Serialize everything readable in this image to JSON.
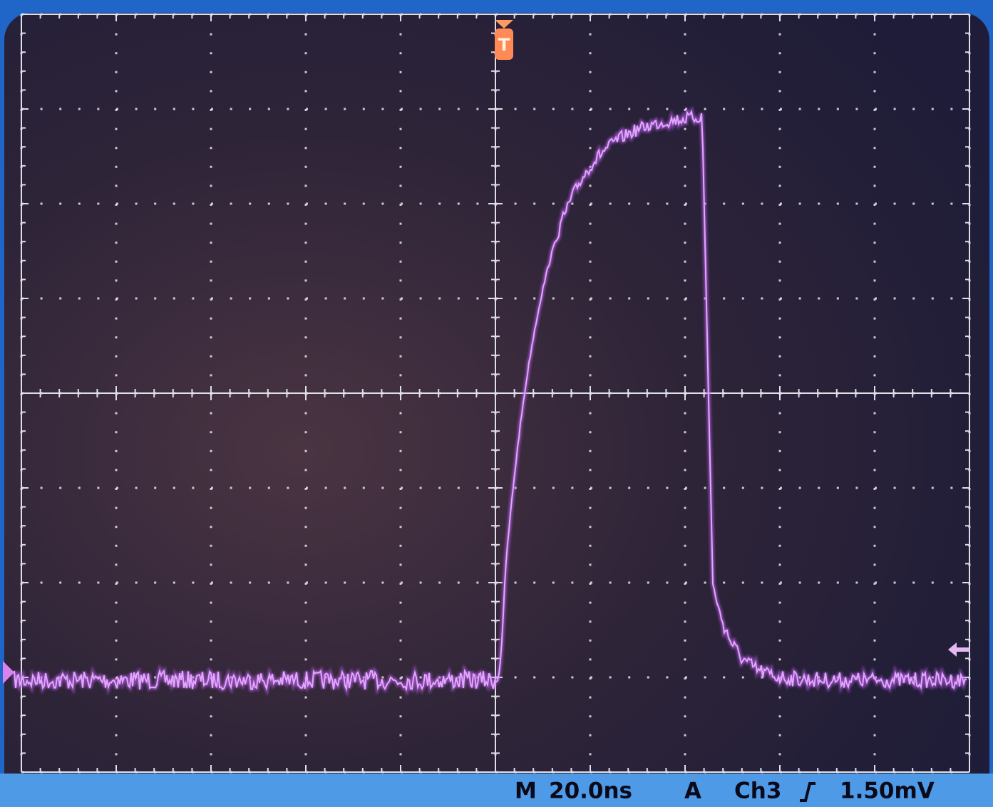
{
  "trigger_marker": "T",
  "status_bar": {
    "timebase_label": "M",
    "timebase": "20.0ns",
    "trigger_mode": "A",
    "trigger_source": "Ch3",
    "trigger_level": "1.50mV"
  }
}
